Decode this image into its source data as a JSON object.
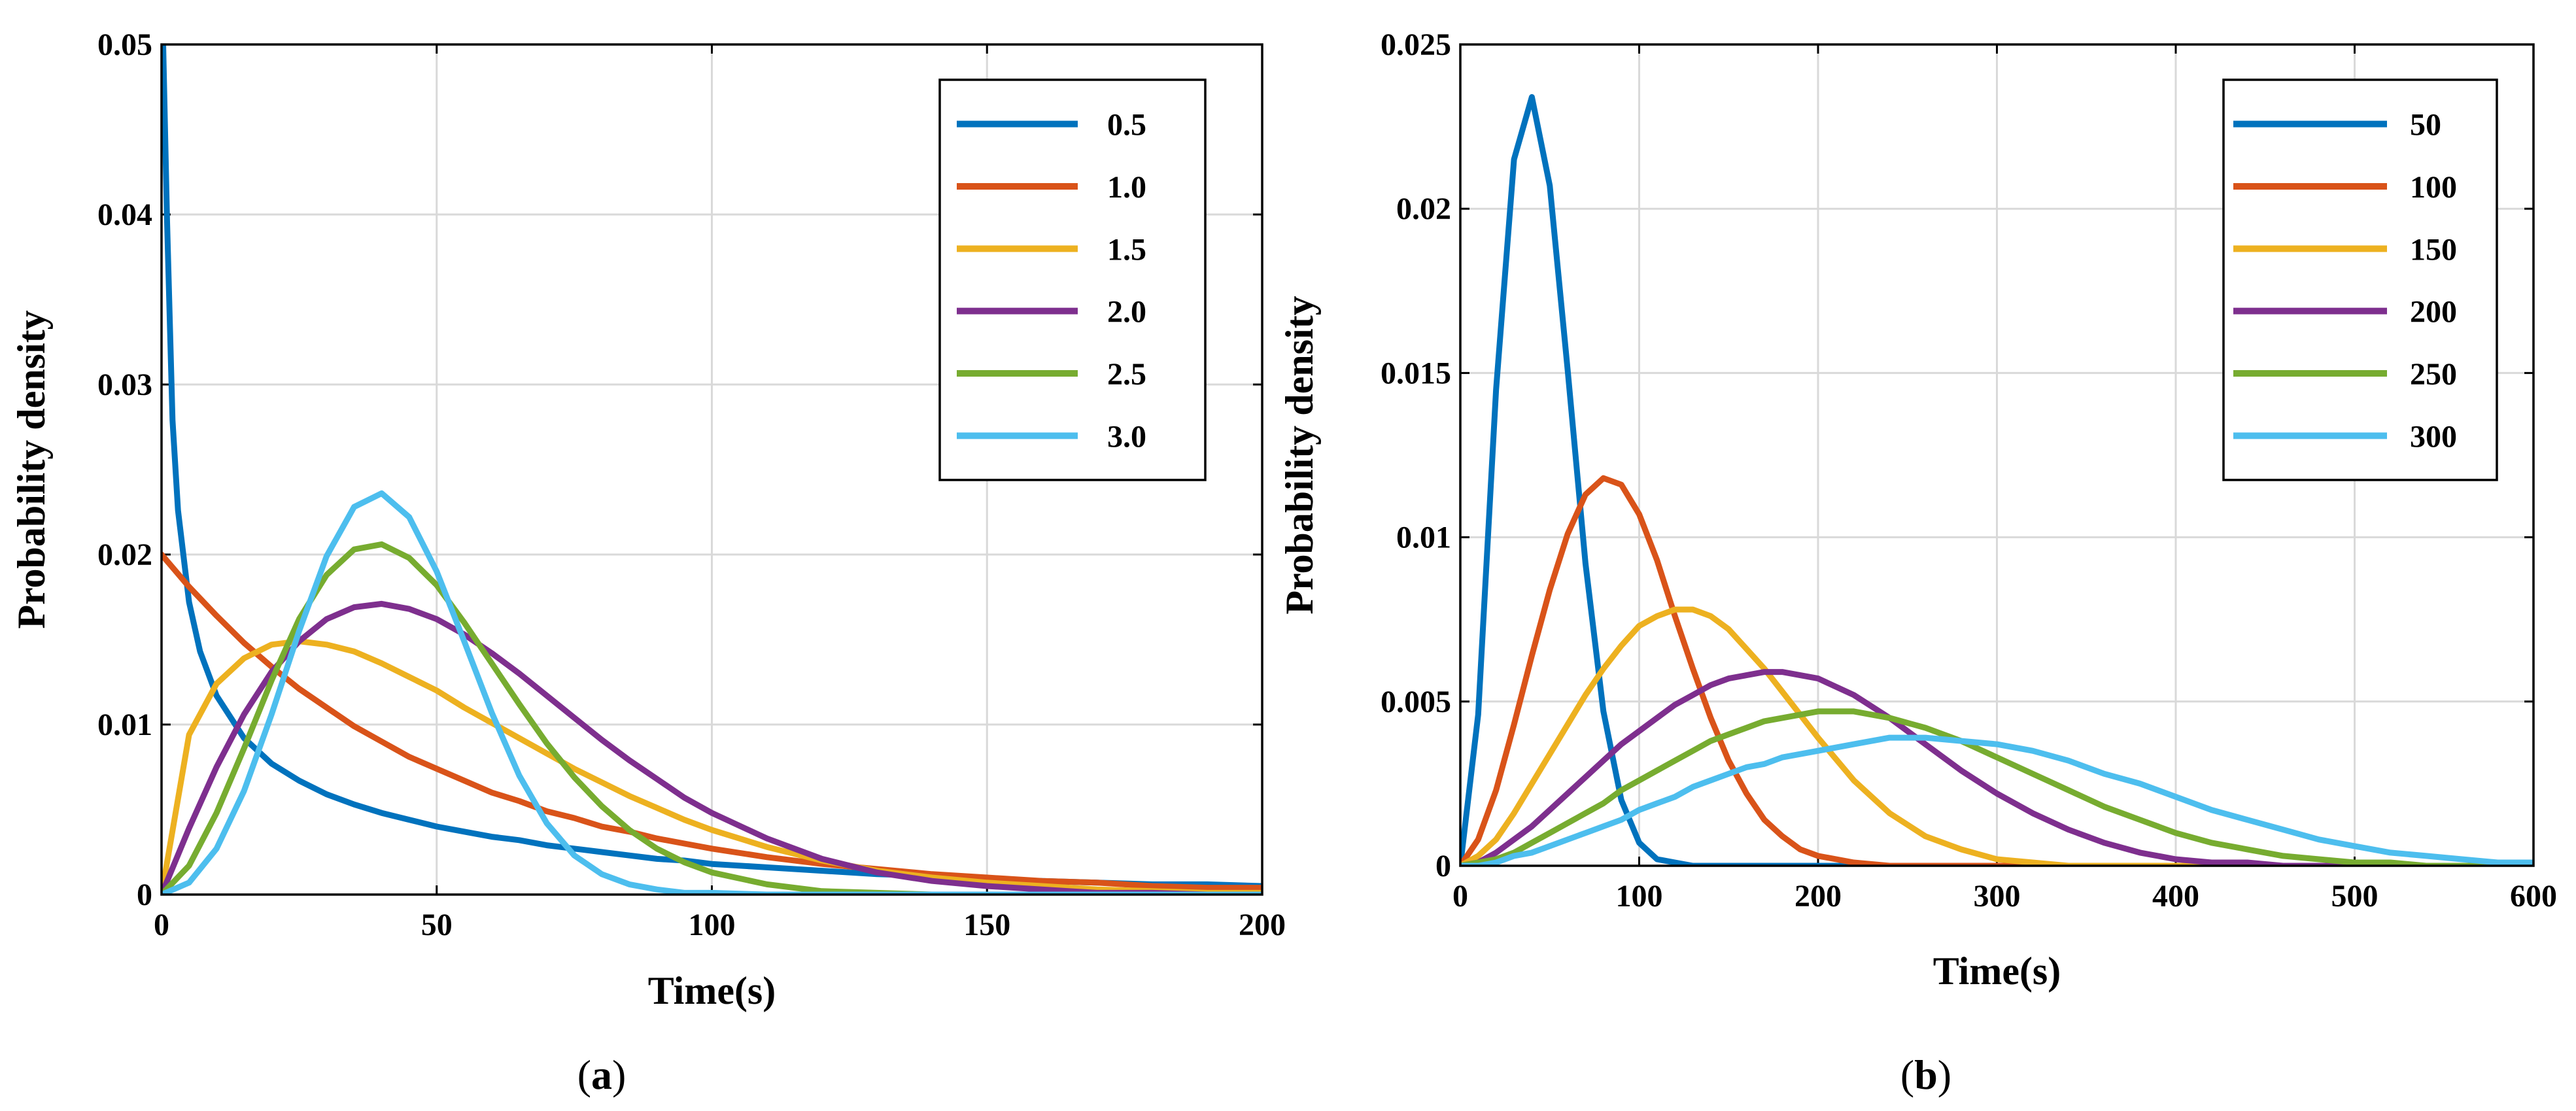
{
  "chart_data": [
    {
      "type": "line",
      "panel": "a",
      "caption_letter": "a",
      "xlabel": "Time(s)",
      "ylabel": "Probability density",
      "xlim": [
        0,
        200
      ],
      "ylim": [
        0,
        0.05
      ],
      "xticks": [
        0,
        50,
        100,
        150,
        200
      ],
      "xtick_labels": [
        "0",
        "50",
        "100",
        "150",
        "200"
      ],
      "yticks": [
        0,
        0.01,
        0.02,
        0.03,
        0.04,
        0.05
      ],
      "ytick_labels": [
        "0",
        "0.01",
        "0.02",
        "0.03",
        "0.04",
        "0.05"
      ],
      "grid": true,
      "legend_position": "top-right",
      "x": [
        0,
        5,
        10,
        15,
        20,
        25,
        30,
        35,
        40,
        45,
        50,
        55,
        60,
        65,
        70,
        75,
        80,
        85,
        90,
        95,
        100,
        110,
        120,
        130,
        140,
        150,
        160,
        170,
        180,
        190,
        200
      ],
      "series": [
        {
          "name": "0.5",
          "color": "#0072BD",
          "x": [
            0.1,
            0.3,
            1,
            2,
            3,
            5,
            7,
            10,
            15,
            20,
            25,
            30,
            35,
            40,
            45,
            50,
            55,
            60,
            65,
            70,
            75,
            80,
            85,
            90,
            95,
            100,
            110,
            120,
            130,
            140,
            150,
            160,
            170,
            180,
            190,
            200
          ],
          "values": [
            0.05,
            0.05,
            0.0397,
            0.0279,
            0.0226,
            0.0172,
            0.0143,
            0.0117,
            0.0092,
            0.0077,
            0.0067,
            0.0059,
            0.0053,
            0.0048,
            0.0044,
            0.004,
            0.0037,
            0.0034,
            0.0032,
            0.0029,
            0.0027,
            0.0025,
            0.0023,
            0.0021,
            0.002,
            0.0018,
            0.0016,
            0.0014,
            0.0012,
            0.0011,
            0.0009,
            0.0008,
            0.0007,
            0.0006,
            0.0006,
            0.0005
          ]
        },
        {
          "name": "1.0",
          "color": "#D95319",
          "values": [
            0.02,
            0.0181,
            0.0164,
            0.0148,
            0.0134,
            0.0121,
            0.011,
            0.0099,
            0.009,
            0.0081,
            0.0074,
            0.0067,
            0.006,
            0.0055,
            0.0049,
            0.0045,
            0.004,
            0.0037,
            0.0033,
            0.003,
            0.0027,
            0.0022,
            0.0018,
            0.0015,
            0.0012,
            0.001,
            0.0008,
            0.0007,
            0.0005,
            0.0004,
            0.0004
          ]
        },
        {
          "name": "1.5",
          "color": "#EDB120",
          "values": [
            0,
            0.0094,
            0.0124,
            0.0139,
            0.0147,
            0.0149,
            0.0147,
            0.0143,
            0.0136,
            0.0128,
            0.012,
            0.011,
            0.0101,
            0.0092,
            0.0083,
            0.0074,
            0.0066,
            0.0058,
            0.0051,
            0.0044,
            0.0038,
            0.0028,
            0.002,
            0.0014,
            0.001,
            0.0007,
            0.0005,
            0.0003,
            0.0002,
            0.0001,
            0.0001
          ]
        },
        {
          "name": "2.0",
          "color": "#7E2F8E",
          "values": [
            0,
            0.0039,
            0.0075,
            0.0106,
            0.0131,
            0.0149,
            0.0162,
            0.0169,
            0.0171,
            0.0168,
            0.0162,
            0.0153,
            0.0142,
            0.013,
            0.0117,
            0.0104,
            0.0091,
            0.0079,
            0.0068,
            0.0057,
            0.0048,
            0.0033,
            0.0021,
            0.0013,
            0.0008,
            0.0005,
            0.0003,
            0.0001,
            0.0001,
            0.0,
            0.0
          ]
        },
        {
          "name": "2.5",
          "color": "#77AC30",
          "values": [
            0,
            0.0017,
            0.0048,
            0.0086,
            0.0126,
            0.0162,
            0.0188,
            0.0203,
            0.0206,
            0.0198,
            0.0182,
            0.016,
            0.0136,
            0.0112,
            0.0089,
            0.0069,
            0.0052,
            0.0038,
            0.0027,
            0.0019,
            0.0013,
            0.0006,
            0.0002,
            0.0001,
            0.0,
            0.0,
            0.0,
            0.0,
            0.0,
            0.0,
            0.0
          ]
        },
        {
          "name": "3.0",
          "color": "#4DBEEE",
          "values": [
            0,
            0.0007,
            0.0027,
            0.0061,
            0.0106,
            0.0155,
            0.0199,
            0.0228,
            0.0236,
            0.0222,
            0.019,
            0.0149,
            0.0107,
            0.007,
            0.0042,
            0.0023,
            0.0012,
            0.0006,
            0.0003,
            0.0001,
            0.0001,
            0.0,
            0.0,
            0.0,
            0.0,
            0.0,
            0.0,
            0.0,
            0.0,
            0.0,
            0.0
          ]
        }
      ]
    },
    {
      "type": "line",
      "panel": "b",
      "caption_letter": "b",
      "xlabel": "Time(s)",
      "ylabel": "Probability density",
      "xlim": [
        0,
        600
      ],
      "ylim": [
        0,
        0.025
      ],
      "xticks": [
        0,
        100,
        200,
        300,
        400,
        500,
        600
      ],
      "xtick_labels": [
        "0",
        "100",
        "200",
        "300",
        "400",
        "500",
        "600"
      ],
      "yticks": [
        0,
        0.005,
        0.01,
        0.015,
        0.02,
        0.025
      ],
      "ytick_labels": [
        "0",
        "0.005",
        "0.01",
        "0.015",
        "0.02",
        "0.025"
      ],
      "grid": true,
      "legend_position": "top-right",
      "x": [
        0,
        10,
        20,
        30,
        40,
        50,
        60,
        70,
        80,
        90,
        100,
        110,
        120,
        130,
        140,
        150,
        160,
        170,
        180,
        190,
        200,
        220,
        240,
        260,
        280,
        300,
        320,
        340,
        360,
        380,
        400,
        420,
        440,
        460,
        480,
        500,
        520,
        540,
        560,
        580,
        600
      ],
      "series": [
        {
          "name": "50",
          "color": "#0072BD",
          "values": [
            0,
            0.0046,
            0.0145,
            0.0215,
            0.0234,
            0.0207,
            0.0151,
            0.0092,
            0.0047,
            0.002,
            0.0007,
            0.0002,
            0.0001,
            0,
            0,
            0,
            0,
            0,
            0,
            0,
            0,
            0,
            0,
            0,
            0,
            0,
            0,
            0,
            0,
            0,
            0,
            0,
            0,
            0,
            0,
            0,
            0,
            0,
            0,
            0,
            0
          ]
        },
        {
          "name": "100",
          "color": "#D95319",
          "values": [
            0,
            0.0008,
            0.0023,
            0.0043,
            0.0064,
            0.0084,
            0.0101,
            0.0113,
            0.0118,
            0.0116,
            0.0107,
            0.0093,
            0.0076,
            0.006,
            0.0045,
            0.0032,
            0.0022,
            0.0014,
            0.0009,
            0.0005,
            0.0003,
            0.0001,
            0,
            0,
            0,
            0,
            0,
            0,
            0,
            0,
            0,
            0,
            0,
            0,
            0,
            0,
            0,
            0,
            0,
            0,
            0
          ]
        },
        {
          "name": "150",
          "color": "#EDB120",
          "values": [
            0,
            0.0003,
            0.0008,
            0.0016,
            0.0025,
            0.0034,
            0.0043,
            0.0052,
            0.006,
            0.0067,
            0.0073,
            0.0076,
            0.0078,
            0.0078,
            0.0076,
            0.0072,
            0.0066,
            0.006,
            0.0053,
            0.0046,
            0.0039,
            0.0026,
            0.0016,
            0.0009,
            0.0005,
            0.0002,
            0.0001,
            0,
            0,
            0,
            0,
            0,
            0,
            0,
            0,
            0,
            0,
            0,
            0,
            0,
            0
          ]
        },
        {
          "name": "200",
          "color": "#7E2F8E",
          "values": [
            0,
            0.0001,
            0.0004,
            0.0008,
            0.0012,
            0.0017,
            0.0022,
            0.0027,
            0.0032,
            0.0037,
            0.0041,
            0.0045,
            0.0049,
            0.0052,
            0.0055,
            0.0057,
            0.0058,
            0.0059,
            0.0059,
            0.0058,
            0.0057,
            0.0052,
            0.0045,
            0.0037,
            0.0029,
            0.0022,
            0.0016,
            0.0011,
            0.0007,
            0.0004,
            0.0002,
            0.0001,
            0.0001,
            0,
            0,
            0,
            0,
            0,
            0,
            0,
            0
          ]
        },
        {
          "name": "250",
          "color": "#77AC30",
          "values": [
            0,
            0.0001,
            0.0002,
            0.0004,
            0.0007,
            0.001,
            0.0013,
            0.0016,
            0.0019,
            0.0023,
            0.0026,
            0.0029,
            0.0032,
            0.0035,
            0.0038,
            0.004,
            0.0042,
            0.0044,
            0.0045,
            0.0046,
            0.0047,
            0.0047,
            0.0045,
            0.0042,
            0.0038,
            0.0033,
            0.0028,
            0.0023,
            0.0018,
            0.0014,
            0.001,
            0.0007,
            0.0005,
            0.0003,
            0.0002,
            0.0001,
            0.0001,
            0,
            0,
            0,
            0
          ]
        },
        {
          "name": "300",
          "color": "#4DBEEE",
          "values": [
            0,
            0,
            0.0001,
            0.0003,
            0.0004,
            0.0006,
            0.0008,
            0.001,
            0.0012,
            0.0014,
            0.0017,
            0.0019,
            0.0021,
            0.0024,
            0.0026,
            0.0028,
            0.003,
            0.0031,
            0.0033,
            0.0034,
            0.0035,
            0.0037,
            0.0039,
            0.0039,
            0.0038,
            0.0037,
            0.0035,
            0.0032,
            0.0028,
            0.0025,
            0.0021,
            0.0017,
            0.0014,
            0.0011,
            0.0008,
            0.0006,
            0.0004,
            0.0003,
            0.0002,
            0.0001,
            0.0001
          ]
        }
      ]
    }
  ]
}
